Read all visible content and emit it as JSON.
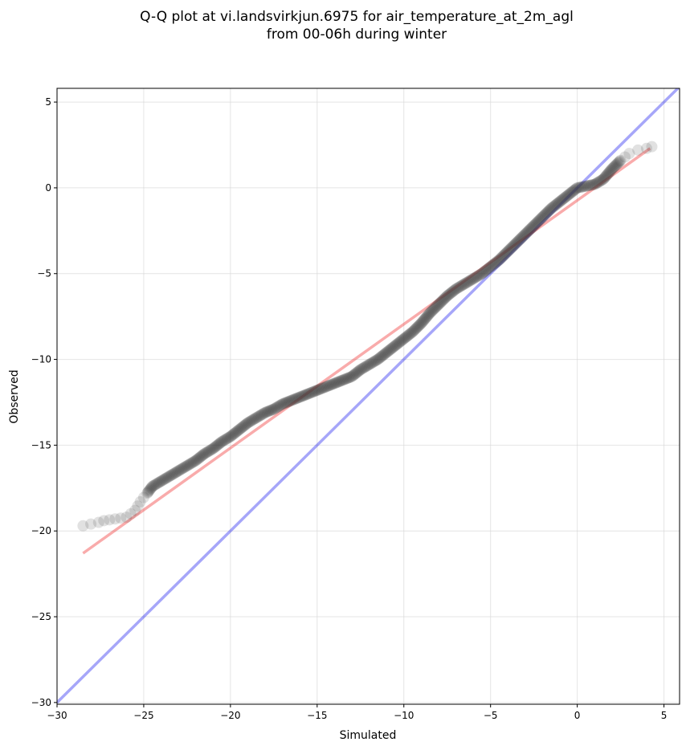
{
  "chart_data": {
    "type": "scatter",
    "title": "Q-Q plot at vi.landsvirkjun.6975 for air_temperature_at_2m_agl",
    "subtitle": "from 00-06h during winter",
    "xlabel": "Simulated",
    "ylabel": "Observed",
    "xlim": [
      -30,
      5.9
    ],
    "ylim": [
      -30.1,
      5.8
    ],
    "xticks": [
      -30,
      -25,
      -20,
      -15,
      -10,
      -5,
      0,
      5
    ],
    "yticks": [
      -30,
      -25,
      -20,
      -15,
      -10,
      -5,
      0,
      5
    ],
    "xtick_labels": [
      "−30",
      "−25",
      "−20",
      "−15",
      "−10",
      "−5",
      "0",
      "5"
    ],
    "ytick_labels": [
      "−30",
      "−25",
      "−20",
      "−15",
      "−10",
      "−5",
      "0",
      "5"
    ],
    "grid": true,
    "quantile_curve": {
      "x": [
        -28.5,
        -27.6,
        -27.3,
        -26.0,
        -25.5,
        -25.2,
        -24.8,
        -24.5,
        -24.0,
        -23.5,
        -23.0,
        -22.5,
        -22.0,
        -21.5,
        -21.0,
        -20.5,
        -20.0,
        -19.5,
        -19.0,
        -18.5,
        -18.0,
        -17.5,
        -17.0,
        -16.5,
        -16.0,
        -15.5,
        -15.0,
        -14.5,
        -14.0,
        -13.5,
        -13.0,
        -12.5,
        -12.0,
        -11.5,
        -11.0,
        -10.5,
        -10.0,
        -9.5,
        -9.0,
        -8.5,
        -8.0,
        -7.5,
        -7.0,
        -6.5,
        -6.0,
        -5.5,
        -5.0,
        -4.5,
        -4.0,
        -3.5,
        -3.0,
        -2.5,
        -2.0,
        -1.5,
        -1.0,
        -0.5,
        0.0,
        0.5,
        1.0,
        1.5,
        2.0,
        2.5,
        3.0,
        3.5,
        4.0,
        4.3
      ],
      "y": [
        -19.7,
        -19.5,
        -19.4,
        -19.2,
        -18.8,
        -18.3,
        -17.8,
        -17.4,
        -17.1,
        -16.8,
        -16.5,
        -16.2,
        -15.9,
        -15.5,
        -15.2,
        -14.8,
        -14.5,
        -14.1,
        -13.7,
        -13.4,
        -13.1,
        -12.9,
        -12.6,
        -12.4,
        -12.2,
        -12.0,
        -11.8,
        -11.6,
        -11.4,
        -11.2,
        -11.0,
        -10.6,
        -10.3,
        -10.0,
        -9.6,
        -9.2,
        -8.8,
        -8.4,
        -7.9,
        -7.3,
        -6.8,
        -6.3,
        -5.9,
        -5.6,
        -5.3,
        -5.0,
        -4.6,
        -4.2,
        -3.7,
        -3.2,
        -2.7,
        -2.2,
        -1.7,
        -1.2,
        -0.8,
        -0.4,
        0.0,
        0.1,
        0.2,
        0.5,
        1.1,
        1.6,
        2.0,
        2.2,
        2.3,
        2.4
      ]
    },
    "reference_line_1to1": {
      "color": "#0000ee",
      "x": [
        -30,
        5.9
      ],
      "y": [
        -30,
        5.9
      ]
    },
    "fit_line": {
      "color": "#ee2222",
      "x": [
        -28.5,
        4.2
      ],
      "y": [
        -21.3,
        2.3
      ]
    },
    "point_color": "#333333"
  }
}
